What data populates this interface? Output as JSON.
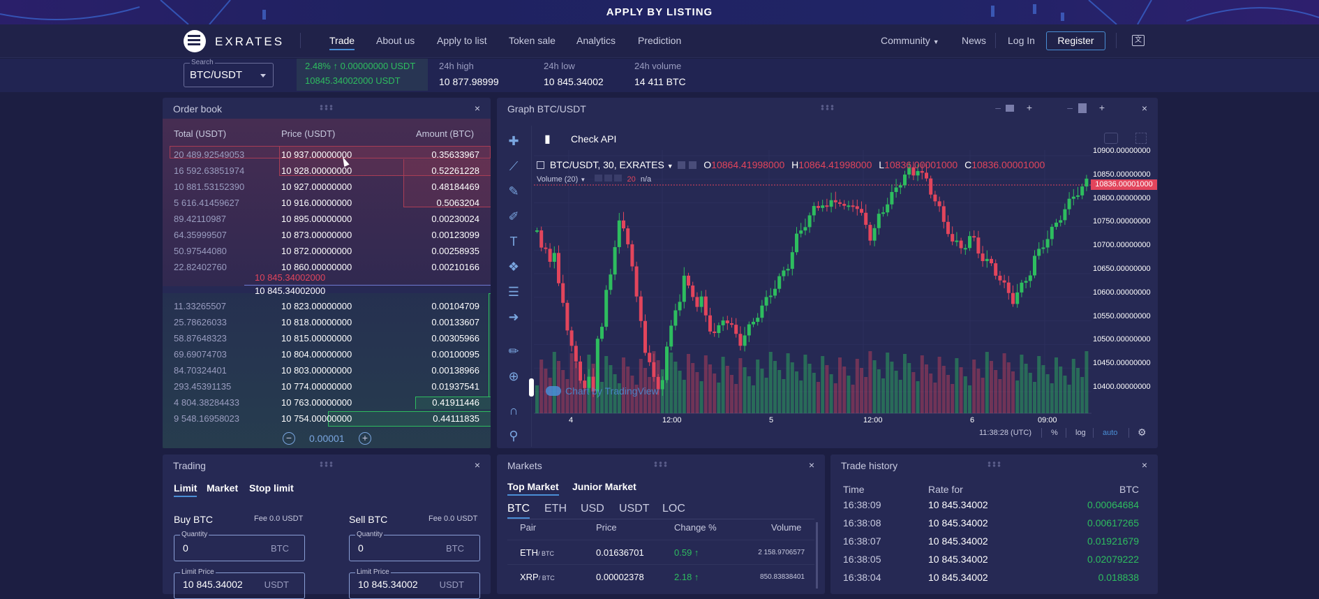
{
  "banner": {
    "text": "APPLY BY LISTING"
  },
  "nav": {
    "logo_text": "EXRATES",
    "links": [
      "Trade",
      "About us",
      "Apply to list",
      "Token sale",
      "Analytics",
      "Prediction"
    ],
    "community": "Community",
    "news": "News",
    "login": "Log In",
    "register": "Register"
  },
  "ticker": {
    "search_label": "Search",
    "pair": "BTC/USDT",
    "change_line1": "2.48% ↑ 0.00000000 USDT",
    "change_line2": "10845.34002000 USDT",
    "high_label": "24h high",
    "high_value": "10 877.98999",
    "low_label": "24h low",
    "low_value": "10 845.34002",
    "vol_label": "24h volume",
    "vol_value": "14 411 BTC"
  },
  "orderbook": {
    "title": "Order book",
    "col_total": "Total (USDT)",
    "col_price": "Price (USDT)",
    "col_amount": "Amount (BTC)",
    "asks": [
      [
        "20 489.92549053",
        "10 937.00000000",
        "0.35633967"
      ],
      [
        "16 592.63851974",
        "10 928.00000000",
        "0.52261228"
      ],
      [
        "10 881.53152390",
        "10 927.00000000",
        "0.48184469"
      ],
      [
        "5 616.41459627",
        "10 916.00000000",
        "0.5063204"
      ],
      [
        "89.42110987",
        "10 895.00000000",
        "0.00230024"
      ],
      [
        "64.35999507",
        "10 873.00000000",
        "0.00123099"
      ],
      [
        "50.97544080",
        "10 872.00000000",
        "0.00258935"
      ],
      [
        "22.82402760",
        "10 860.00000000",
        "0.00210166"
      ]
    ],
    "mid_red": "10 845.34002000",
    "mid_white": "10 845.34002000",
    "bids": [
      [
        "11.33265507",
        "10 823.00000000",
        "0.00104709"
      ],
      [
        "25.78626033",
        "10 818.00000000",
        "0.00133607"
      ],
      [
        "58.87648323",
        "10 815.00000000",
        "0.00305966"
      ],
      [
        "69.69074703",
        "10 804.00000000",
        "0.00100095"
      ],
      [
        "84.70324401",
        "10 803.00000000",
        "0.00138966"
      ],
      [
        "293.45391135",
        "10 774.00000000",
        "0.01937541"
      ],
      [
        "4 804.38284433",
        "10 763.00000000",
        "0.41911446"
      ],
      [
        "9 548.16958023",
        "10 754.00000000",
        "0.44111835"
      ]
    ],
    "step": "0.00001"
  },
  "graph": {
    "title": "Graph BTC/USDT",
    "check_api": "Check API",
    "symbol": "BTC/USDT, 30, EXRATES",
    "o_label": "O",
    "o_val": "10864.41998000",
    "h_label": "H",
    "h_val": "10864.41998000",
    "l_label": "L",
    "l_val": "10836.00001000",
    "c_label": "C",
    "c_val": "10836.00001000",
    "volume_label": "Volume (20)",
    "volume_num": "20",
    "volume_na": "n/a",
    "watermark": "Chart by TradingView",
    "price_ticks": [
      "10900.00000000",
      "10850.00000000",
      "10800.00000000",
      "10750.00000000",
      "10700.00000000",
      "10650.00000000",
      "10600.00000000",
      "10550.00000000",
      "10500.00000000",
      "10450.00000000",
      "10400.00000000"
    ],
    "current_price": "10836.00001000",
    "time_ticks": [
      "4",
      "12:00",
      "5",
      "12:00",
      "6",
      "09:00"
    ],
    "clock": "11:38:28 (UTC)",
    "pct": "%",
    "log": "log",
    "auto": "auto"
  },
  "trading": {
    "title": "Trading",
    "tabs": [
      "Limit",
      "Market",
      "Stop limit"
    ],
    "buy_title": "Buy BTC",
    "buy_fee": "Fee 0.0 USDT",
    "sell_title": "Sell BTC",
    "sell_fee": "Fee 0.0 USDT",
    "qty_label": "Quantity",
    "qty_val": "0",
    "qty_unit": "BTC",
    "limit_label": "Limit Price",
    "limit_val": "10 845.34002",
    "limit_unit": "USDT"
  },
  "markets": {
    "title": "Markets",
    "tabs": [
      "Top Market",
      "Junior Market"
    ],
    "currencies": [
      "BTC",
      "ETH",
      "USD",
      "USDT",
      "LOC"
    ],
    "cols": [
      "Pair",
      "Price",
      "Change %",
      "Volume"
    ],
    "rows": [
      {
        "pair": "ETH",
        "quote": "/ BTC",
        "price": "0.01636701",
        "change": "0.59 ↑",
        "volume": "2 158.9706577"
      },
      {
        "pair": "XRP",
        "quote": "/ BTC",
        "price": "0.00002378",
        "change": "2.18 ↑",
        "volume": "850.83838401"
      }
    ]
  },
  "history": {
    "title": "Trade history",
    "cols": [
      "Time",
      "Rate for",
      "BTC"
    ],
    "rows": [
      [
        "16:38:09",
        "10 845.34002",
        "0.00064684"
      ],
      [
        "16:38:08",
        "10 845.34002",
        "0.00617265"
      ],
      [
        "16:38:07",
        "10 845.34002",
        "0.01921679"
      ],
      [
        "16:38:05",
        "10 845.34002",
        "0.02079222"
      ],
      [
        "16:38:04",
        "10 845.34002",
        "0.018838"
      ]
    ]
  }
}
